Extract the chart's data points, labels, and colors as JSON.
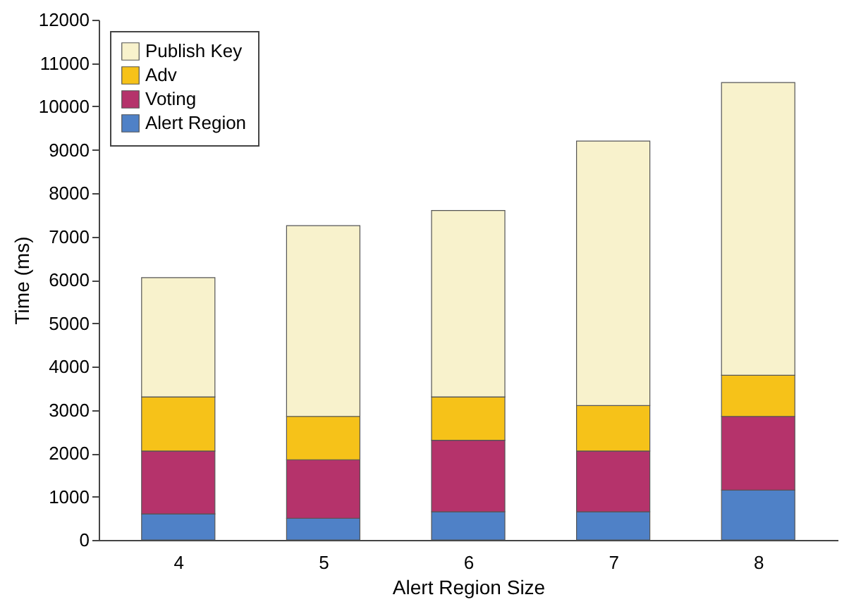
{
  "chart_data": {
    "type": "bar",
    "stacked": true,
    "xlabel": "Alert Region Size",
    "ylabel": "Time (ms)",
    "categories": [
      "4",
      "5",
      "6",
      "7",
      "8"
    ],
    "series": [
      {
        "name": "Alert Region",
        "color": "#4f81c7",
        "values": [
          600,
          500,
          650,
          650,
          1150
        ]
      },
      {
        "name": "Voting",
        "color": "#b5336b",
        "values": [
          1450,
          1350,
          1650,
          1400,
          1700
        ]
      },
      {
        "name": "Adv",
        "color": "#f6c219",
        "values": [
          1250,
          1000,
          1000,
          1050,
          950
        ]
      },
      {
        "name": "Publish Key",
        "color": "#f8f2cc",
        "values": [
          2750,
          4400,
          4300,
          6100,
          6750
        ]
      }
    ],
    "ylim": [
      0,
      12000
    ],
    "yticks": [
      0,
      1000,
      2000,
      3000,
      4000,
      5000,
      6000,
      7000,
      8000,
      9000,
      10000,
      11000,
      12000
    ],
    "grid": false,
    "legend": "top left"
  }
}
